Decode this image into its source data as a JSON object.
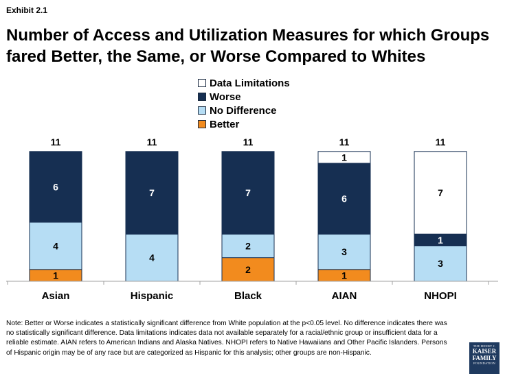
{
  "exhibit_label": "Exhibit 2.1",
  "chart_data": {
    "type": "bar",
    "stacked": true,
    "title": "Number of Access and Utilization Measures for which Groups fared Better, the Same, or Worse Compared to Whites",
    "title_lines": [
      "Number of Access and Utilization Measures for which Groups",
      "fared Better, the Same, or Worse Compared to Whites"
    ],
    "categories": [
      "Asian",
      "Hispanic",
      "Black",
      "AIAN",
      "NHOPI"
    ],
    "totals": [
      11,
      11,
      11,
      11,
      11
    ],
    "ylim": [
      0,
      11
    ],
    "grid": false,
    "legend_position": "top-center",
    "series": [
      {
        "name": "Better",
        "color": "#f28b1e",
        "values": [
          1,
          0,
          2,
          1,
          0
        ]
      },
      {
        "name": "No Difference",
        "color": "#b6ddf4",
        "values": [
          4,
          4,
          2,
          3,
          3
        ]
      },
      {
        "name": "Worse",
        "color": "#162f52",
        "values": [
          6,
          7,
          7,
          6,
          1
        ]
      },
      {
        "name": "Data Limitations",
        "color": "#ffffff",
        "values": [
          0,
          0,
          0,
          1,
          7
        ]
      }
    ]
  },
  "legend": [
    {
      "label": "Data Limitations",
      "color": "#ffffff"
    },
    {
      "label": "Worse",
      "color": "#162f52"
    },
    {
      "label": "No Difference",
      "color": "#b6ddf4"
    },
    {
      "label": "Better",
      "color": "#f28b1e"
    }
  ],
  "note": "Note: Better or Worse indicates a statistically significant difference from White population at the p<0.05 level. No difference indicates there was no statistically significant difference. Data limitations indicates data not available separately for a racial/ethnic group or insufficient data for a reliable estimate. AIAN refers to American Indians and Alaska Natives. NHOPI refers to Native Hawaiians and Other Pacific Islanders. Persons of Hispanic origin may be of any race but are categorized as Hispanic for this analysis; other groups are non-Hispanic.",
  "logo": {
    "line1": "THE HENRY J.",
    "line2": "KAISER",
    "line3": "FAMILY",
    "line4": "FOUNDATION"
  }
}
